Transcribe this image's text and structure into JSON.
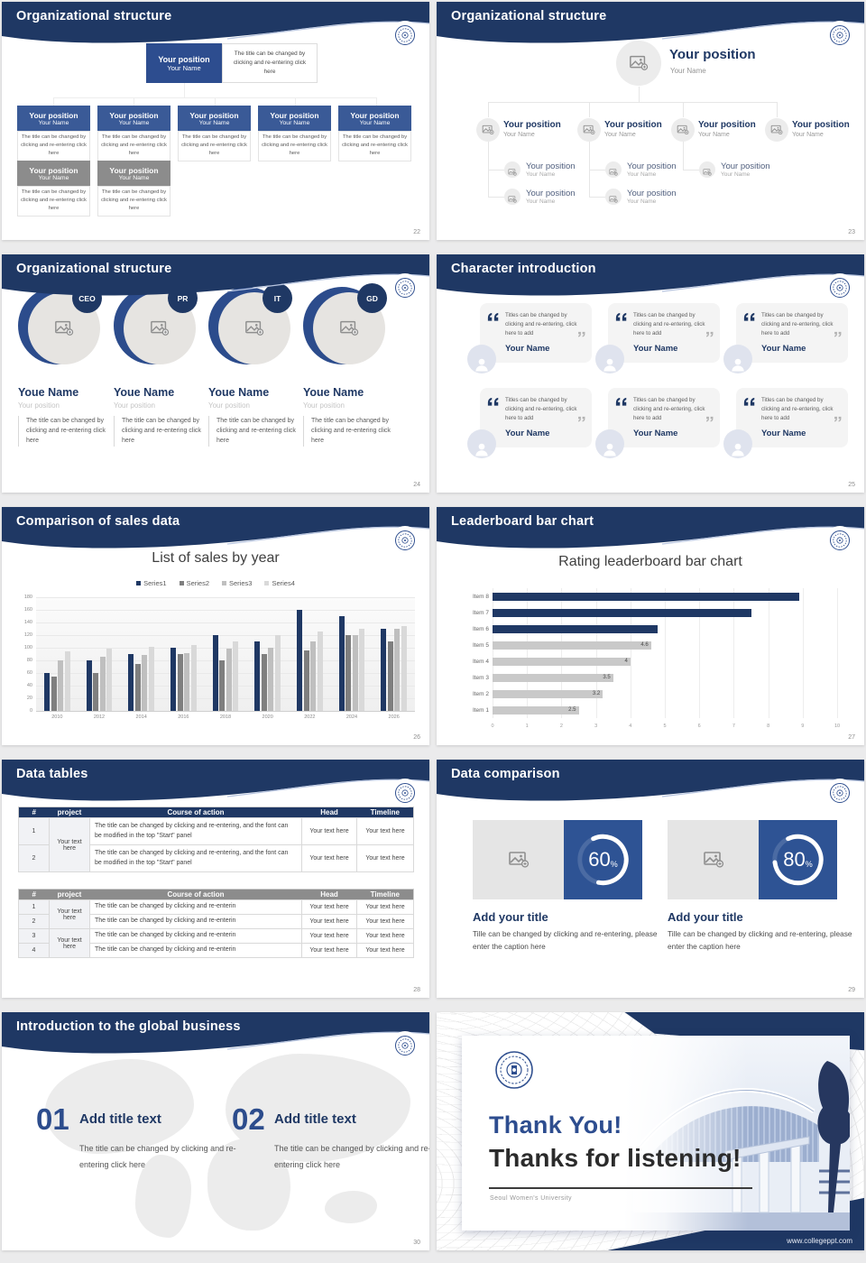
{
  "page_background": "#ebebec",
  "brand": {
    "header_navy": "#1f3864",
    "box_blue": "#3a5a97",
    "root_blue": "#2d4d8f",
    "panel_blue": "#2e5394",
    "box_gray": "#8c8c8c",
    "card_gray": "#f4f4f4",
    "accent_text": "#1f3864"
  },
  "icons": [
    "university-seal-icon",
    "image-placeholder-icon",
    "person-icon",
    "quote-open-icon",
    "quote-close-icon"
  ],
  "slides": [
    {
      "title": "Organizational structure",
      "page": "22",
      "root": {
        "position": "Your position",
        "name": "Your Name"
      },
      "caption": "The title can be changed by clicking and re-entering click here",
      "level2": [
        {
          "position": "Your position",
          "name": "Your Name"
        },
        {
          "position": "Your position",
          "name": "Your Name"
        },
        {
          "position": "Your position",
          "name": "Your Name"
        },
        {
          "position": "Your position",
          "name": "Your Name"
        },
        {
          "position": "Your position",
          "name": "Your Name"
        }
      ],
      "level3": [
        {
          "position": "Your position",
          "name": "Your Name"
        },
        {
          "position": "Your position",
          "name": "Your Name"
        }
      ]
    },
    {
      "title": "Organizational structure",
      "page": "23",
      "root": {
        "position": "Your position",
        "name": "Your Name"
      },
      "branches": [
        {
          "position": "Your position",
          "name": "Your Name"
        },
        {
          "position": "Your position",
          "name": "Your Name"
        },
        {
          "position": "Your position",
          "name": "Your Name"
        },
        {
          "position": "Your position",
          "name": "Your Name"
        }
      ],
      "subs": [
        [
          {
            "position": "Your position",
            "name": "Your Name"
          },
          {
            "position": "Your position",
            "name": "Your Name"
          }
        ],
        [
          {
            "position": "Your position",
            "name": "Your Name"
          },
          {
            "position": "Your position",
            "name": "Your Name"
          }
        ],
        [
          {
            "position": "Your position",
            "name": "Your Name"
          }
        ],
        []
      ]
    },
    {
      "title": "Organizational structure",
      "page": "24",
      "profiles": [
        {
          "badge": "CEO",
          "name": "Youe Name",
          "position": "Your position",
          "caption": "The title can be changed by clicking and re-entering click here"
        },
        {
          "badge": "PR",
          "name": "Youe Name",
          "position": "Your position",
          "caption": "The title can be changed by clicking and re-entering click here"
        },
        {
          "badge": "IT",
          "name": "Youe Name",
          "position": "Your position",
          "caption": "The title can be changed by clicking and re-entering click here"
        },
        {
          "badge": "GD",
          "name": "Youe Name",
          "position": "Your position",
          "caption": "The title can be changed by clicking and re-entering click here"
        }
      ]
    },
    {
      "title": "Character introduction",
      "page": "25",
      "cards": [
        {
          "quote": "Titles can be changed by clicking and re-entering, click here to add",
          "name": "Your Name"
        },
        {
          "quote": "Titles can be changed by clicking and re-entering, click here to add",
          "name": "Your Name"
        },
        {
          "quote": "Titles can be changed by clicking and re-entering, click here to add",
          "name": "Your Name"
        },
        {
          "quote": "Titles can be changed by clicking and re-entering, click here to add",
          "name": "Your Name"
        },
        {
          "quote": "Titles can be changed by clicking and re-entering, click here to add",
          "name": "Your Name"
        },
        {
          "quote": "Titles can be changed by clicking and re-entering, click here to add",
          "name": "Your Name"
        }
      ]
    },
    {
      "title": "Comparison of sales data",
      "page": "26"
    },
    {
      "title": "Leaderboard bar chart",
      "page": "27"
    },
    {
      "title": "Data tables",
      "page": "28",
      "table1": {
        "headers": [
          "#",
          "project",
          "Course of action",
          "Head",
          "Timeline"
        ],
        "row_numbers": [
          "1",
          "2"
        ],
        "project": "Your text here",
        "course": "The title can be changed by clicking and re-entering, and the font can be modified in the top \"Start\" panel",
        "cell": "Your text here"
      },
      "table2": {
        "headers": [
          "#",
          "project",
          "Course of action",
          "Head",
          "Timeline"
        ],
        "row_numbers": [
          "1",
          "2",
          "3",
          "4"
        ],
        "project": "Your text here",
        "course": "The title can be changed by clicking and re-enterin",
        "cell": "Your text here"
      }
    },
    {
      "title": "Data comparison",
      "page": "29",
      "panels": [
        {
          "percent": 60,
          "title": "Add your title",
          "caption": "Tille can be changed by clicking and re-entering, please enter the caption here"
        },
        {
          "percent": 80,
          "title": "Add your title",
          "caption": "Tille can be changed by clicking and re-entering, please enter the caption here"
        }
      ]
    },
    {
      "title": "Introduction to the global business",
      "page": "30",
      "steps": [
        {
          "num": "01",
          "title": "Add title text",
          "caption": "The title can be changed by clicking and re-entering click here"
        },
        {
          "num": "02",
          "title": "Add title text",
          "caption": "The title can be changed by clicking and re-entering click here"
        }
      ]
    },
    {
      "title_line1": "Thank You!",
      "title_line2": "Thanks for listening!",
      "subtitle": "Seoul Women's University",
      "website": "www.collegeppt.com"
    }
  ],
  "chart_data": [
    {
      "type": "bar",
      "title": "List of sales by year",
      "categories": [
        "2010",
        "2012",
        "2014",
        "2016",
        "2018",
        "2020",
        "2022",
        "2024",
        "2026"
      ],
      "series": [
        {
          "name": "Series1",
          "color": "#1f3864",
          "values": [
            60,
            80,
            90,
            100,
            120,
            110,
            160,
            150,
            130
          ]
        },
        {
          "name": "Series2",
          "color": "#7f7f7f",
          "values": [
            55,
            60,
            75,
            90,
            80,
            90,
            96,
            120,
            110
          ]
        },
        {
          "name": "Series3",
          "color": "#bfbfbf",
          "values": [
            80,
            86,
            88,
            92,
            98,
            100,
            110,
            120,
            130
          ]
        },
        {
          "name": "Series4",
          "color": "#d9d9d9",
          "values": [
            95,
            98,
            102,
            105,
            110,
            120,
            126,
            130,
            135
          ]
        }
      ],
      "xlabel": "",
      "ylabel": "",
      "ylim": [
        0,
        180
      ],
      "ytick_step": 20,
      "grid": true,
      "legend_position": "top"
    },
    {
      "type": "bar-horizontal",
      "title": "Rating leaderboard bar chart",
      "categories": [
        "Item 8",
        "Item 7",
        "Item 6",
        "Item 5",
        "Item 4",
        "Item 3",
        "Item 2",
        "Item 1"
      ],
      "values": [
        8.9,
        7.5,
        4.8,
        4.6,
        4,
        3.5,
        3.2,
        2.5
      ],
      "colors": [
        "#1f3864",
        "#1f3864",
        "#1f3864",
        "#c9c9c9",
        "#c9c9c9",
        "#c9c9c9",
        "#c9c9c9",
        "#c9c9c9"
      ],
      "data_labels": [
        null,
        null,
        null,
        "4.6",
        "4",
        "3.5",
        "3.2",
        "2.5"
      ],
      "xlim": [
        0,
        10
      ],
      "xtick_step": 1,
      "grid": true,
      "legend_position": "none"
    }
  ]
}
